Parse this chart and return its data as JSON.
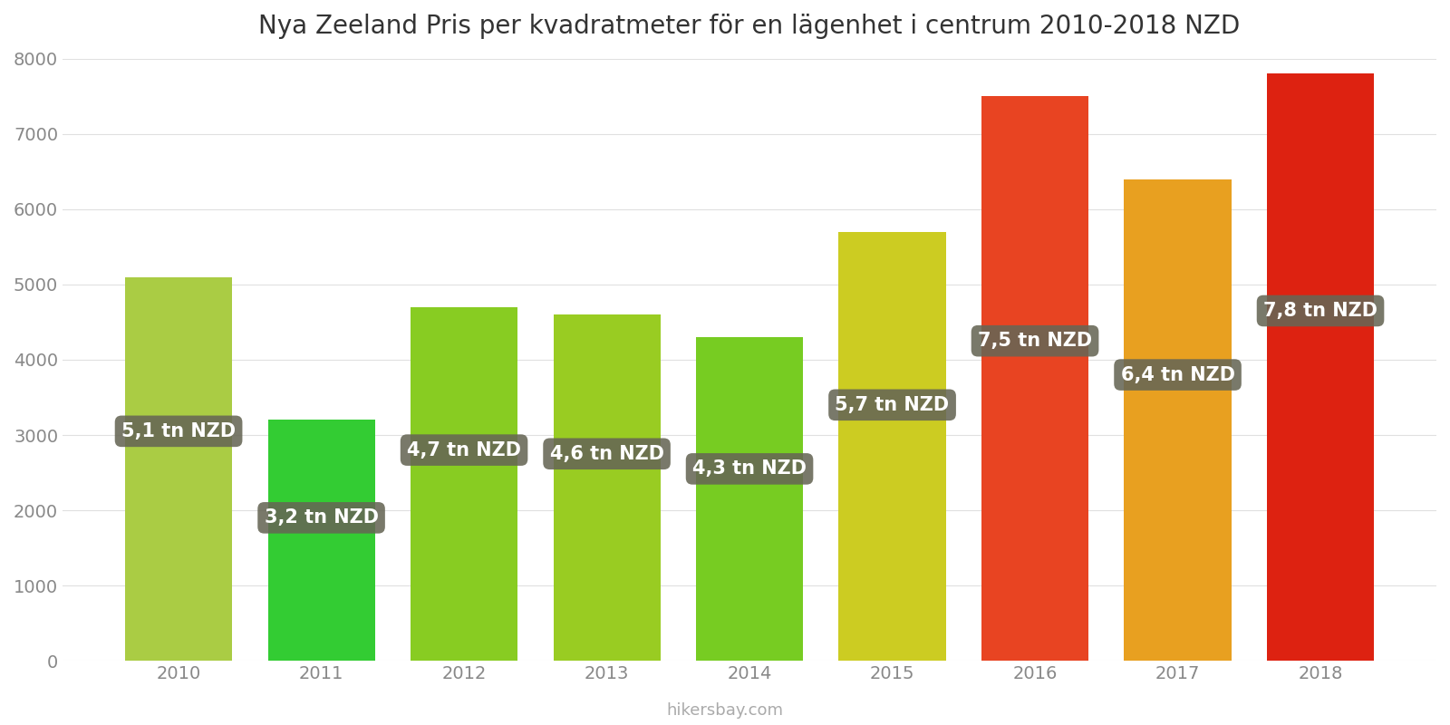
{
  "title": "Nya Zeeland Pris per kvadratmeter för en lägenhet i centrum 2010-2018 NZD",
  "years": [
    2010,
    2011,
    2012,
    2013,
    2014,
    2015,
    2016,
    2017,
    2018
  ],
  "values": [
    5100,
    3200,
    4700,
    4600,
    4300,
    5700,
    7500,
    6400,
    7800
  ],
  "labels": [
    "5,1 tn NZD",
    "3,2 tn NZD",
    "4,7 tn NZD",
    "4,6 tn NZD",
    "4,3 tn NZD",
    "5,7 tn NZD",
    "7,5 tn NZD",
    "6,4 tn NZD",
    "7,8 tn NZD"
  ],
  "colors": [
    "#AACC44",
    "#33CC33",
    "#88CC22",
    "#99CC22",
    "#77CC22",
    "#CCCC22",
    "#E84422",
    "#E8A020",
    "#DD2211"
  ],
  "ylim": [
    0,
    8000
  ],
  "yticks": [
    0,
    1000,
    2000,
    3000,
    4000,
    5000,
    6000,
    7000,
    8000
  ],
  "label_box_color": "#666655",
  "label_text_color": "#ffffff",
  "label_y_positions": [
    3050,
    1900,
    2800,
    2750,
    2550,
    3400,
    4250,
    3800,
    4650
  ],
  "watermark": "hikersbay.com",
  "background_color": "#ffffff",
  "title_fontsize": 20,
  "tick_fontsize": 14,
  "label_fontsize": 15,
  "bar_width": 0.75
}
